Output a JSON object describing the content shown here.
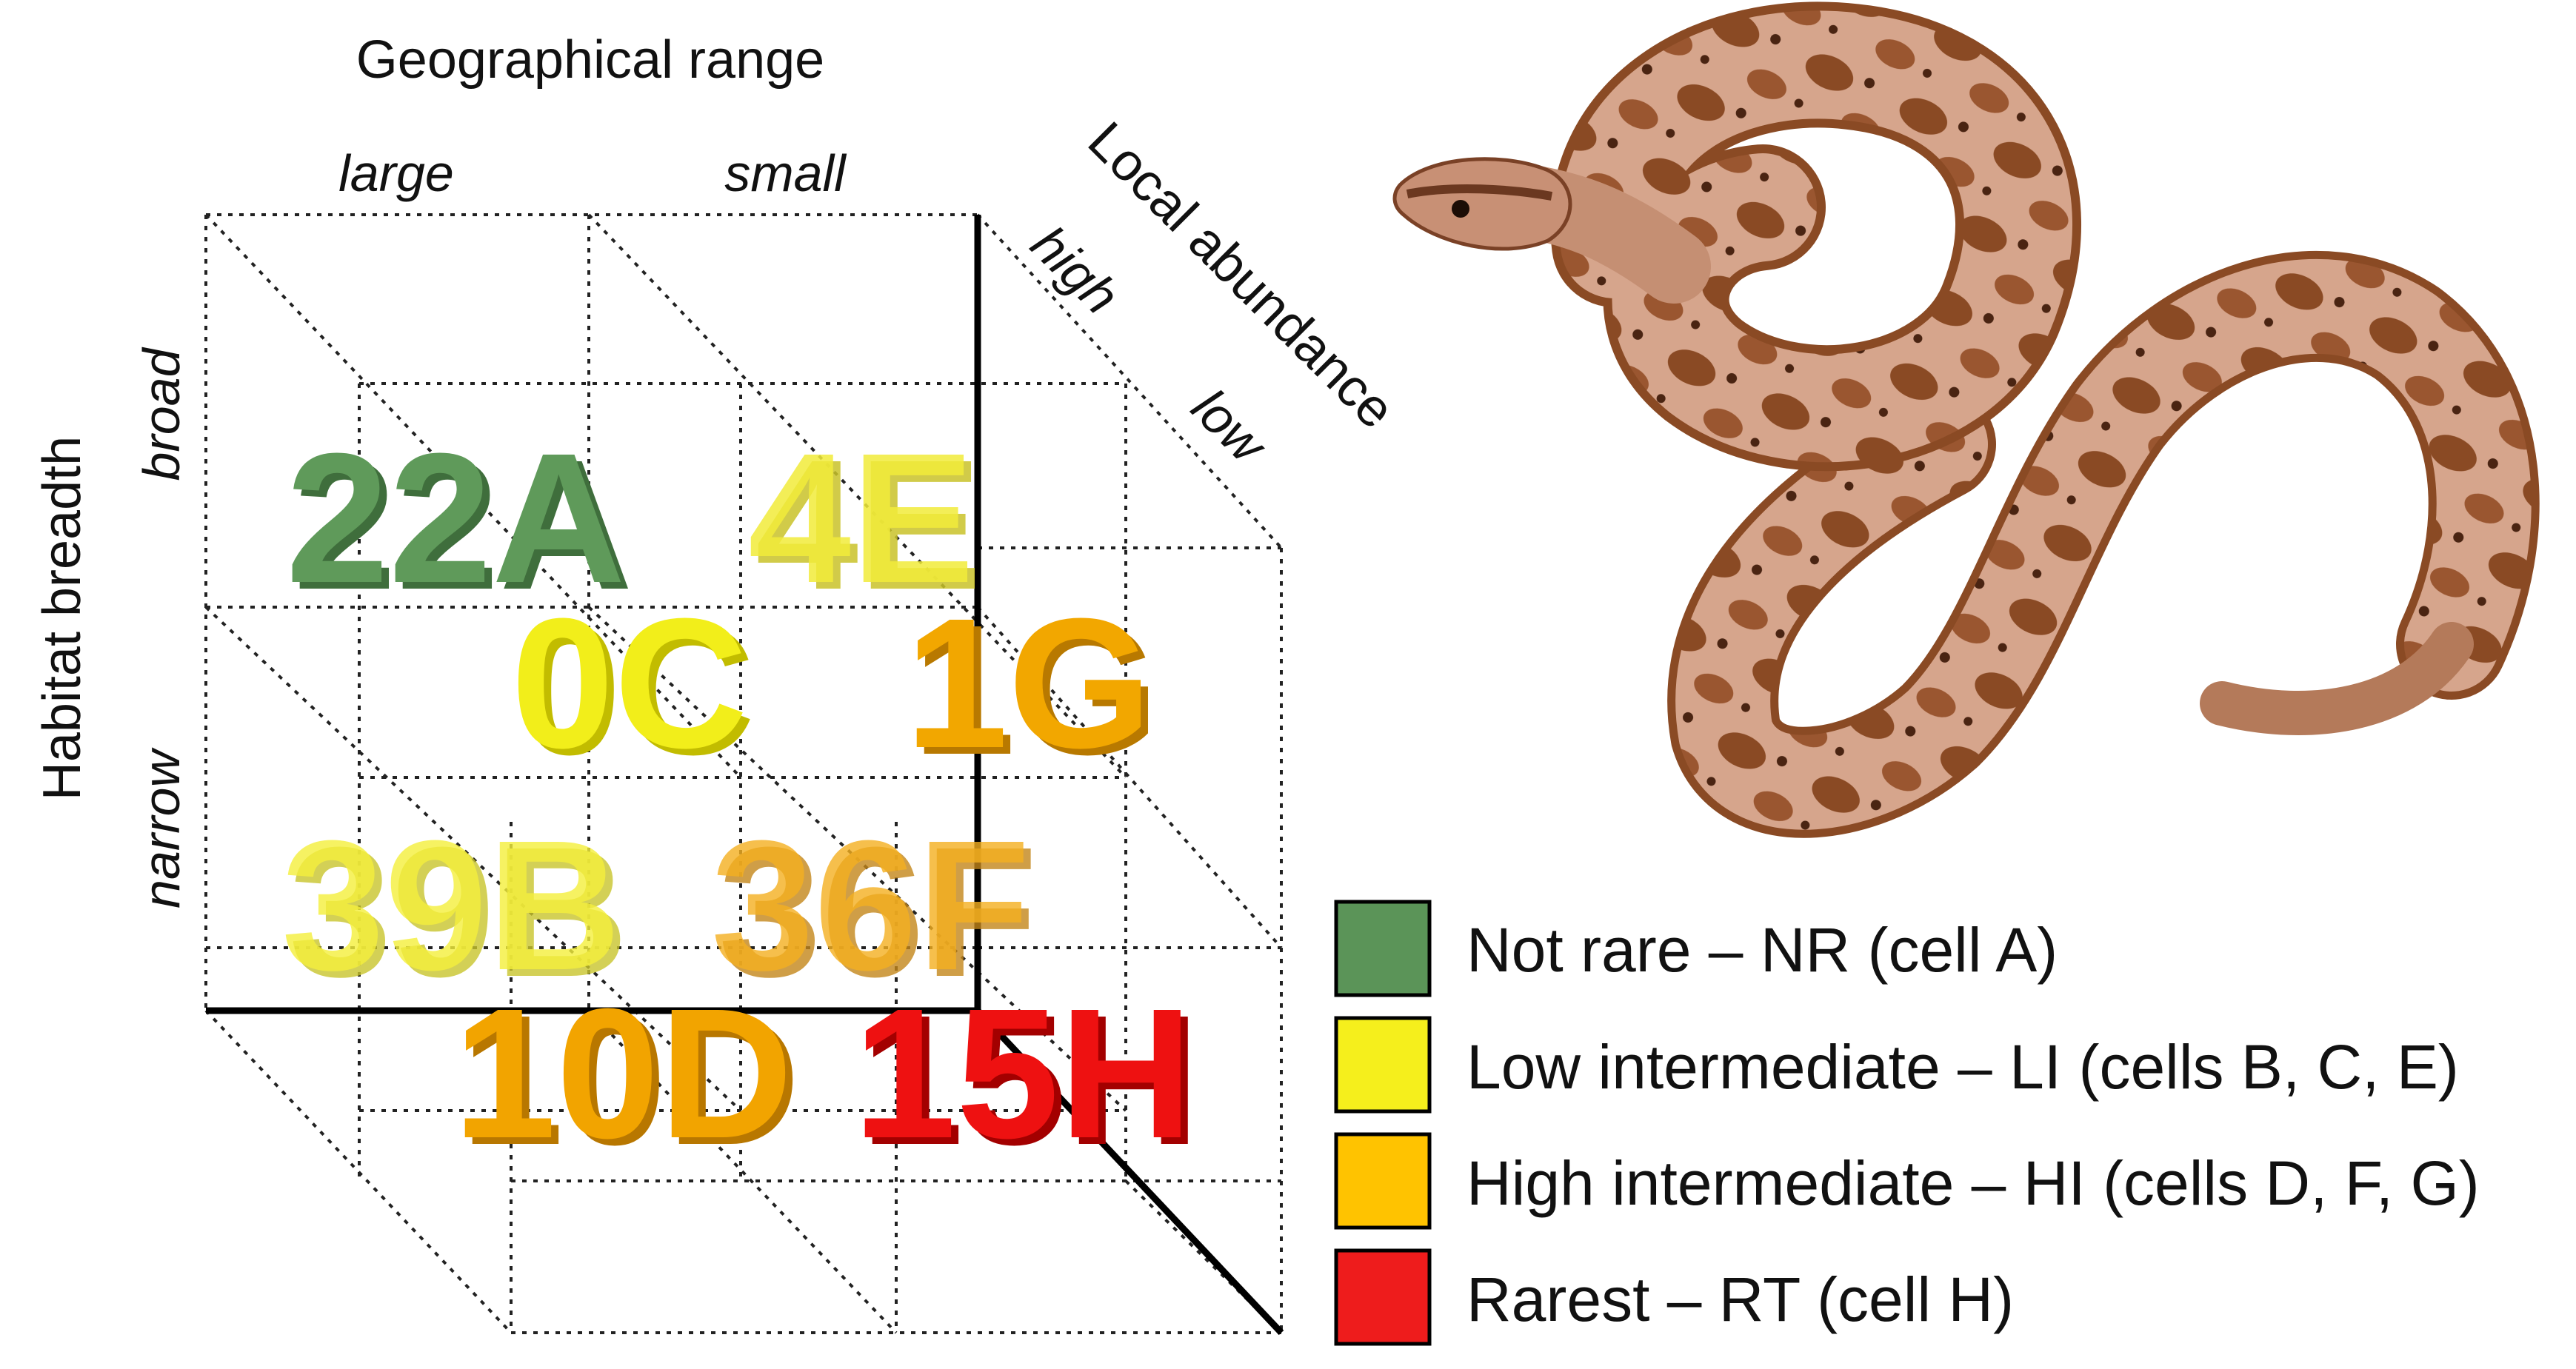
{
  "axes": {
    "geographical_range": {
      "title": "Geographical range",
      "levels": [
        "large",
        "small"
      ]
    },
    "local_abundance": {
      "title": "Local abundance",
      "levels": [
        "high",
        "low"
      ]
    },
    "habitat_breadth": {
      "title": "Habitat breadth",
      "levels": [
        "broad",
        "narrow"
      ]
    }
  },
  "cells": [
    {
      "count": "22",
      "cell": "A",
      "text": "22A",
      "category": "NR",
      "color": "#5f9a5a"
    },
    {
      "count": "4",
      "cell": "E",
      "text": "4E",
      "category": "LI",
      "color": "#f2ec3a"
    },
    {
      "count": "0",
      "cell": "C",
      "text": "0C",
      "category": "LI",
      "color": "#f2ee1a"
    },
    {
      "count": "1",
      "cell": "G",
      "text": "1G",
      "category": "HI",
      "color": "#f2a700"
    },
    {
      "count": "39",
      "cell": "B",
      "text": "39B",
      "category": "LI",
      "color": "#f5f03c"
    },
    {
      "count": "36",
      "cell": "F",
      "text": "36F",
      "category": "HI",
      "color": "#f5b020"
    },
    {
      "count": "10",
      "cell": "D",
      "text": "10D",
      "category": "HI",
      "color": "#f2a400"
    },
    {
      "count": "15",
      "cell": "H",
      "text": "15H",
      "category": "RT",
      "color": "#ee1111"
    }
  ],
  "legend": [
    {
      "label": "Not rare – NR (cell A)",
      "color": "#5b9458"
    },
    {
      "label": "Low intermediate – LI (cells B, C, E)",
      "color": "#f5ef1c"
    },
    {
      "label": "High intermediate – HI (cells D, F, G)",
      "color": "#ffc300"
    },
    {
      "label": "Rarest – RT (cell H)",
      "color": "#ee1c1c"
    }
  ],
  "image": {
    "subject": "snake-illustration",
    "colors": {
      "base": "#d6a58c",
      "blotch": "#8a4a24",
      "belly": "#e9c29a"
    }
  }
}
